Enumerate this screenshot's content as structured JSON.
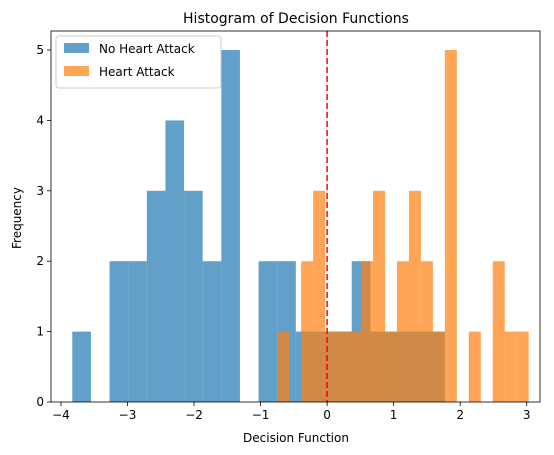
{
  "chart_data": {
    "type": "bar",
    "subtype": "histogram",
    "title": "Histogram of Decision Functions",
    "xlabel": "Decision Function",
    "ylabel": "Frequency",
    "xlim": [
      -4.15,
      3.2
    ],
    "ylim": [
      0,
      5.27
    ],
    "xticks": [
      -4,
      -3,
      -2,
      -1,
      0,
      1,
      2,
      3
    ],
    "yticks": [
      0,
      1,
      2,
      3,
      4,
      5
    ],
    "legend_position": "top-left",
    "reference_line": {
      "x": 0,
      "color": "#ff0000",
      "style": "dashed"
    },
    "series": [
      {
        "name": "No Heart Attack",
        "color": "#1f77b4",
        "opacity": 0.7,
        "bins": [
          {
            "x0": -3.83,
            "x1": -3.55,
            "count": 1
          },
          {
            "x0": -3.55,
            "x1": -3.27,
            "count": 0
          },
          {
            "x0": -3.27,
            "x1": -2.99,
            "count": 2
          },
          {
            "x0": -2.99,
            "x1": -2.71,
            "count": 2
          },
          {
            "x0": -2.71,
            "x1": -2.43,
            "count": 3
          },
          {
            "x0": -2.43,
            "x1": -2.15,
            "count": 4
          },
          {
            "x0": -2.15,
            "x1": -1.87,
            "count": 3
          },
          {
            "x0": -1.87,
            "x1": -1.59,
            "count": 2
          },
          {
            "x0": -1.59,
            "x1": -1.31,
            "count": 5
          },
          {
            "x0": -1.31,
            "x1": -1.03,
            "count": 0
          },
          {
            "x0": -1.03,
            "x1": -0.75,
            "count": 2
          },
          {
            "x0": -0.75,
            "x1": -0.47,
            "count": 2
          },
          {
            "x0": -0.47,
            "x1": -0.19,
            "count": 1
          },
          {
            "x0": -0.19,
            "x1": 0.09,
            "count": 1
          },
          {
            "x0": 0.09,
            "x1": 0.37,
            "count": 1
          },
          {
            "x0": 0.37,
            "x1": 0.65,
            "count": 2
          },
          {
            "x0": 0.65,
            "x1": 0.93,
            "count": 1
          },
          {
            "x0": 0.93,
            "x1": 1.21,
            "count": 1
          },
          {
            "x0": 1.21,
            "x1": 1.49,
            "count": 1
          },
          {
            "x0": 1.49,
            "x1": 1.77,
            "count": 1
          }
        ]
      },
      {
        "name": "Heart Attack",
        "color": "#ff7f0e",
        "opacity": 0.7,
        "bins": [
          {
            "x0": -0.75,
            "x1": -0.57,
            "count": 1
          },
          {
            "x0": -0.57,
            "x1": -0.39,
            "count": 0
          },
          {
            "x0": -0.39,
            "x1": -0.21,
            "count": 2
          },
          {
            "x0": -0.21,
            "x1": -0.03,
            "count": 3
          },
          {
            "x0": -0.03,
            "x1": 0.15,
            "count": 1
          },
          {
            "x0": 0.15,
            "x1": 0.33,
            "count": 1
          },
          {
            "x0": 0.33,
            "x1": 0.51,
            "count": 1
          },
          {
            "x0": 0.51,
            "x1": 0.69,
            "count": 2
          },
          {
            "x0": 0.69,
            "x1": 0.87,
            "count": 3
          },
          {
            "x0": 0.87,
            "x1": 1.05,
            "count": 1
          },
          {
            "x0": 1.05,
            "x1": 1.23,
            "count": 2
          },
          {
            "x0": 1.23,
            "x1": 1.41,
            "count": 3
          },
          {
            "x0": 1.41,
            "x1": 1.59,
            "count": 2
          },
          {
            "x0": 1.59,
            "x1": 1.77,
            "count": 1
          },
          {
            "x0": 1.77,
            "x1": 1.95,
            "count": 5
          },
          {
            "x0": 1.95,
            "x1": 2.13,
            "count": 0
          },
          {
            "x0": 2.13,
            "x1": 2.31,
            "count": 1
          },
          {
            "x0": 2.31,
            "x1": 2.49,
            "count": 0
          },
          {
            "x0": 2.49,
            "x1": 2.67,
            "count": 2
          },
          {
            "x0": 2.67,
            "x1": 2.85,
            "count": 1
          },
          {
            "x0": 2.85,
            "x1": 3.03,
            "count": 1
          }
        ]
      }
    ]
  }
}
